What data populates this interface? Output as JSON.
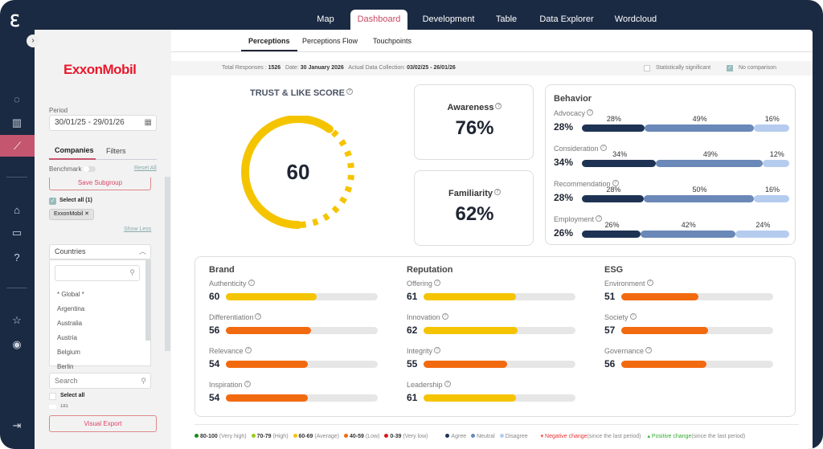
{
  "nav": {
    "tabs": [
      "Map",
      "Dashboard",
      "Development",
      "Table",
      "Data Explorer",
      "Wordcloud"
    ],
    "active": "Dashboard"
  },
  "subtabs": {
    "items": [
      "Perceptions",
      "Perceptions Flow",
      "Touchpoints"
    ],
    "active": "Perceptions"
  },
  "left": {
    "brand": "ExxonMobil",
    "period_label": "Period",
    "period_value": "30/01/25 - 29/01/26",
    "tabs": [
      "Companies",
      "Filters"
    ],
    "benchmark": "Benchmark",
    "reset_all": "Reset All",
    "save_subgroup": "Save Subgroup",
    "select_all_count": "Select all (1)",
    "chip": "ExxonMobil",
    "show_less": "Show Less",
    "countries_label": "Countries",
    "countries": [
      "* Global *",
      "Argentina",
      "Australia",
      "Austria",
      "Belgium",
      "Berlin"
    ],
    "search_placeholder": "Search",
    "select_all": "Select all",
    "partial_item": "181",
    "visual_export": "Visual Export"
  },
  "info": {
    "total_label": "Total Responses :",
    "total": "1526",
    "date_label": "Date:",
    "date": "30 January 2026",
    "collection_label": "Actual Data Collection:",
    "collection": "03/02/25 - 26/01/26",
    "stat_sig": "Statistically significant",
    "no_comparison": "No comparison"
  },
  "trust": {
    "title": "TRUST & LIKE SCORE",
    "value": "60",
    "fraction": 0.6,
    "color": "#f5c400"
  },
  "awareness": {
    "label": "Awareness",
    "value": "76%"
  },
  "familiarity": {
    "label": "Familiarity",
    "value": "62%"
  },
  "behavior": {
    "title": "Behavior",
    "rows": [
      {
        "label": "Advocacy",
        "value": "28%",
        "agree": 28,
        "neutral": 49,
        "disagree": 16
      },
      {
        "label": "Consideration",
        "value": "34%",
        "agree": 34,
        "neutral": 49,
        "disagree": 12
      },
      {
        "label": "Recommendation",
        "value": "28%",
        "agree": 28,
        "neutral": 50,
        "disagree": 16
      },
      {
        "label": "Employment",
        "value": "26%",
        "agree": 26,
        "neutral": 42,
        "disagree": 24
      }
    ],
    "colors": {
      "agree": "#1e3354",
      "neutral": "#6a88b8",
      "disagree": "#b5ccef"
    }
  },
  "groups": [
    {
      "title": "Brand",
      "rows": [
        {
          "label": "Authenticity",
          "value": 60
        },
        {
          "label": "Differentiation",
          "value": 56
        },
        {
          "label": "Relevance",
          "value": 54
        },
        {
          "label": "Inspiration",
          "value": 54
        }
      ]
    },
    {
      "title": "Reputation",
      "rows": [
        {
          "label": "Offering",
          "value": 61
        },
        {
          "label": "Innovation",
          "value": 62
        },
        {
          "label": "Integrity",
          "value": 55
        },
        {
          "label": "Leadership",
          "value": 61
        }
      ]
    },
    {
      "title": "ESG",
      "rows": [
        {
          "label": "Environment",
          "value": 51
        },
        {
          "label": "Society",
          "value": 57
        },
        {
          "label": "Governance",
          "value": 56
        }
      ]
    }
  ],
  "legend": {
    "scale": [
      {
        "range": "80-100",
        "text": "(Very high)",
        "color": "#1a8a1a"
      },
      {
        "range": "70-79",
        "text": "(High)",
        "color": "#9ccc1a"
      },
      {
        "range": "60-69",
        "text": "(Average)",
        "color": "#f5c400"
      },
      {
        "range": "40-59",
        "text": "(Low)",
        "color": "#f26a10"
      },
      {
        "range": "0-39",
        "text": "(Very low)",
        "color": "#d81818"
      }
    ],
    "agree": "Agree",
    "neutral": "Neutral",
    "disagree": "Disagree",
    "negative": "Negative change",
    "negative_note": "(since the last period)",
    "positive": "Positive change",
    "positive_note": "(since the last period)"
  }
}
